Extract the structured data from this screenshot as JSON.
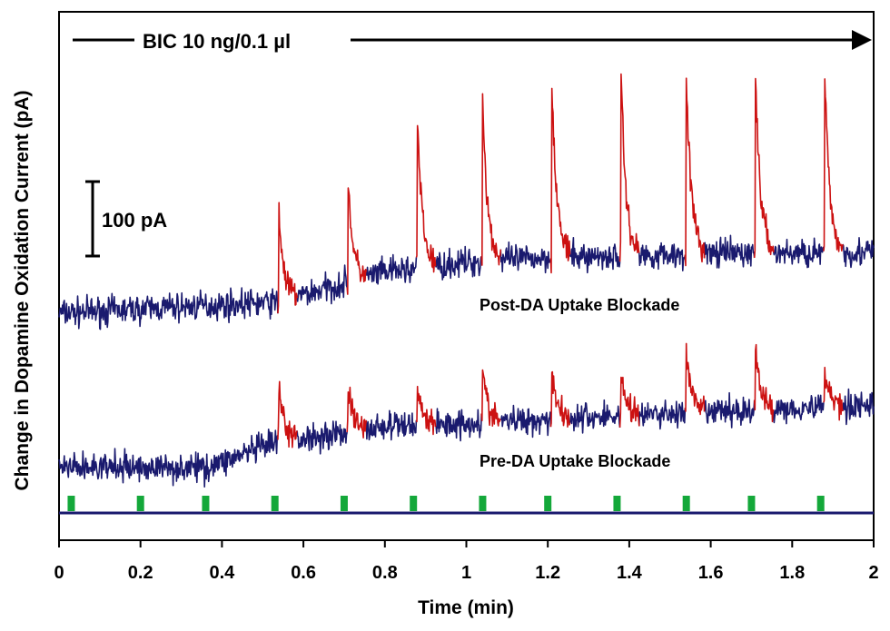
{
  "chart_data": {
    "type": "line",
    "ylabel": "Change in Dopamine Oxidation Current (pA)",
    "xlabel": "Time (min)",
    "xlim": [
      0,
      2
    ],
    "xticks": [
      0,
      0.2,
      0.4,
      0.6,
      0.8,
      1,
      1.2,
      1.4,
      1.6,
      1.8,
      2
    ],
    "xtick_labels": [
      "0",
      "0.2",
      "0.4",
      "0.6",
      "0.8",
      "1",
      "1.2",
      "1.4",
      "1.6",
      "1.8",
      "2"
    ],
    "grid": false,
    "annotations": {
      "drug_bar": "BIC 10 ng/0.1 µl",
      "scale_bar": "100 pA",
      "scale_bar_value_pA": 100
    },
    "series": [
      {
        "name": "Post-DA Uptake Blockade",
        "baseline_pA": [
          [
            0.0,
            0
          ],
          [
            0.54,
            15
          ],
          [
            0.6,
            25
          ],
          [
            0.8,
            55
          ],
          [
            1.0,
            68
          ],
          [
            1.2,
            75
          ],
          [
            1.6,
            80
          ],
          [
            2.0,
            82
          ]
        ],
        "event_times_min": [
          0.54,
          0.71,
          0.88,
          1.04,
          1.21,
          1.38,
          1.54,
          1.71,
          1.88
        ],
        "event_peak_amplitude_pA": [
          120,
          135,
          200,
          220,
          235,
          240,
          245,
          240,
          235
        ],
        "trace_color": "#1a1a6e",
        "event_color": "#cc1111"
      },
      {
        "name": "Pre-DA Uptake Blockade",
        "baseline_pA": [
          [
            0.0,
            0
          ],
          [
            0.36,
            0
          ],
          [
            0.54,
            35
          ],
          [
            0.8,
            55
          ],
          [
            1.0,
            60
          ],
          [
            1.2,
            65
          ],
          [
            1.6,
            75
          ],
          [
            2.0,
            85
          ]
        ],
        "event_times_min": [
          0.54,
          0.71,
          0.88,
          1.04,
          1.21,
          1.38,
          1.54,
          1.71,
          1.88
        ],
        "event_peak_amplitude_pA": [
          75,
          60,
          55,
          70,
          68,
          60,
          80,
          80,
          55
        ],
        "trace_color": "#1a1a6e",
        "event_color": "#cc1111"
      }
    ],
    "stimulation_markers_min": [
      0.03,
      0.2,
      0.36,
      0.53,
      0.7,
      0.87,
      1.04,
      1.2,
      1.37,
      1.54,
      1.7,
      1.87
    ],
    "colors": {
      "trace": "#1a1a6e",
      "events": "#cc1111",
      "stimulation": "#14a83a",
      "axis": "#000000"
    }
  }
}
